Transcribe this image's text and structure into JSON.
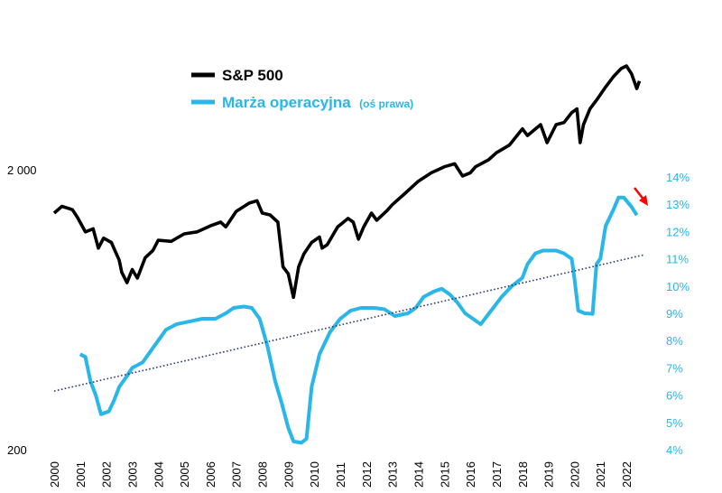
{
  "chart_data": {
    "type": "line",
    "title": "",
    "xlabel": "",
    "ylabel_left": "",
    "ylabel_right": "",
    "legend_position": "top-center",
    "grid": false,
    "colors": {
      "sp500": "#000000",
      "margin": "#29b6e8",
      "trend": "#2a3a6e",
      "arrow": "#ff0000"
    },
    "x_ticks": [
      "2000",
      "2001",
      "2002",
      "2003",
      "2004",
      "2005",
      "2006",
      "2007",
      "2008",
      "2009",
      "2010",
      "2011",
      "2012",
      "2013",
      "2014",
      "2015",
      "2016",
      "2017",
      "2018",
      "2019",
      "2020",
      "2021",
      "2022"
    ],
    "y_left": {
      "scale": "log",
      "range": [
        200,
        4900
      ],
      "tick_labels": [
        "200",
        "2 000"
      ],
      "tick_values": [
        200,
        2000
      ]
    },
    "y_right": {
      "scale": "linear",
      "range": [
        4,
        14
      ],
      "tick_labels": [
        "4%",
        "5%",
        "6%",
        "7%",
        "8%",
        "9%",
        "10%",
        "11%",
        "12%",
        "13%",
        "14%"
      ],
      "tick_values": [
        4,
        5,
        6,
        7,
        8,
        9,
        10,
        11,
        12,
        13,
        14
      ]
    },
    "series": [
      {
        "name": "S&P 500",
        "axis": "left",
        "points": [
          [
            2000.0,
            1400
          ],
          [
            2000.3,
            1480
          ],
          [
            2000.7,
            1440
          ],
          [
            2000.9,
            1350
          ],
          [
            2001.2,
            1200
          ],
          [
            2001.5,
            1230
          ],
          [
            2001.7,
            1050
          ],
          [
            2001.9,
            1140
          ],
          [
            2002.2,
            1100
          ],
          [
            2002.5,
            950
          ],
          [
            2002.6,
            860
          ],
          [
            2002.8,
            790
          ],
          [
            2003.0,
            880
          ],
          [
            2003.2,
            820
          ],
          [
            2003.5,
            970
          ],
          [
            2003.8,
            1030
          ],
          [
            2004.0,
            1120
          ],
          [
            2004.5,
            1110
          ],
          [
            2005.0,
            1180
          ],
          [
            2005.5,
            1200
          ],
          [
            2006.0,
            1260
          ],
          [
            2006.4,
            1300
          ],
          [
            2006.6,
            1250
          ],
          [
            2007.0,
            1420
          ],
          [
            2007.5,
            1520
          ],
          [
            2007.8,
            1550
          ],
          [
            2008.0,
            1400
          ],
          [
            2008.3,
            1380
          ],
          [
            2008.6,
            1300
          ],
          [
            2008.8,
            900
          ],
          [
            2009.0,
            850
          ],
          [
            2009.2,
            700
          ],
          [
            2009.4,
            900
          ],
          [
            2009.6,
            1000
          ],
          [
            2009.9,
            1100
          ],
          [
            2010.2,
            1150
          ],
          [
            2010.3,
            1050
          ],
          [
            2010.5,
            1080
          ],
          [
            2010.9,
            1250
          ],
          [
            2011.3,
            1340
          ],
          [
            2011.5,
            1300
          ],
          [
            2011.7,
            1130
          ],
          [
            2011.9,
            1250
          ],
          [
            2012.2,
            1400
          ],
          [
            2012.4,
            1320
          ],
          [
            2012.8,
            1430
          ],
          [
            2013.0,
            1500
          ],
          [
            2013.5,
            1650
          ],
          [
            2014.0,
            1820
          ],
          [
            2014.5,
            1950
          ],
          [
            2015.0,
            2050
          ],
          [
            2015.4,
            2100
          ],
          [
            2015.7,
            1900
          ],
          [
            2016.0,
            1950
          ],
          [
            2016.2,
            2050
          ],
          [
            2016.7,
            2170
          ],
          [
            2017.0,
            2300
          ],
          [
            2017.5,
            2450
          ],
          [
            2018.0,
            2800
          ],
          [
            2018.2,
            2650
          ],
          [
            2018.7,
            2900
          ],
          [
            2018.95,
            2500
          ],
          [
            2019.3,
            2900
          ],
          [
            2019.6,
            2950
          ],
          [
            2019.9,
            3200
          ],
          [
            2020.1,
            3300
          ],
          [
            2020.22,
            2500
          ],
          [
            2020.35,
            2900
          ],
          [
            2020.6,
            3300
          ],
          [
            2020.9,
            3600
          ],
          [
            2021.2,
            3950
          ],
          [
            2021.5,
            4300
          ],
          [
            2021.8,
            4600
          ],
          [
            2022.0,
            4700
          ],
          [
            2022.2,
            4400
          ],
          [
            2022.4,
            3900
          ],
          [
            2022.5,
            4150
          ]
        ]
      },
      {
        "name": "Marża operacyjna",
        "name_note": "(oś prawa)",
        "axis": "right",
        "points": [
          [
            2001.0,
            7.5
          ],
          [
            2001.2,
            7.4
          ],
          [
            2001.4,
            6.5
          ],
          [
            2001.6,
            6.0
          ],
          [
            2001.8,
            5.3
          ],
          [
            2002.1,
            5.4
          ],
          [
            2002.3,
            5.8
          ],
          [
            2002.5,
            6.3
          ],
          [
            2002.8,
            6.7
          ],
          [
            2003.0,
            7.0
          ],
          [
            2003.4,
            7.2
          ],
          [
            2003.7,
            7.6
          ],
          [
            2004.0,
            8.0
          ],
          [
            2004.3,
            8.4
          ],
          [
            2004.7,
            8.6
          ],
          [
            2005.2,
            8.7
          ],
          [
            2005.7,
            8.8
          ],
          [
            2006.2,
            8.8
          ],
          [
            2006.6,
            9.0
          ],
          [
            2006.9,
            9.2
          ],
          [
            2007.3,
            9.25
          ],
          [
            2007.6,
            9.2
          ],
          [
            2007.9,
            8.8
          ],
          [
            2008.2,
            7.8
          ],
          [
            2008.5,
            6.5
          ],
          [
            2008.75,
            5.7
          ],
          [
            2009.0,
            4.8
          ],
          [
            2009.2,
            4.3
          ],
          [
            2009.5,
            4.25
          ],
          [
            2009.7,
            4.4
          ],
          [
            2009.9,
            6.3
          ],
          [
            2010.2,
            7.5
          ],
          [
            2010.6,
            8.3
          ],
          [
            2011.0,
            8.8
          ],
          [
            2011.4,
            9.1
          ],
          [
            2011.8,
            9.2
          ],
          [
            2012.3,
            9.2
          ],
          [
            2012.7,
            9.15
          ],
          [
            2013.1,
            8.9
          ],
          [
            2013.6,
            9.0
          ],
          [
            2013.9,
            9.2
          ],
          [
            2014.2,
            9.6
          ],
          [
            2014.6,
            9.8
          ],
          [
            2014.9,
            9.9
          ],
          [
            2015.2,
            9.7
          ],
          [
            2015.5,
            9.4
          ],
          [
            2015.8,
            9.0
          ],
          [
            2016.1,
            8.8
          ],
          [
            2016.4,
            8.6
          ],
          [
            2016.8,
            9.1
          ],
          [
            2017.2,
            9.6
          ],
          [
            2017.6,
            10.0
          ],
          [
            2018.0,
            10.3
          ],
          [
            2018.2,
            10.8
          ],
          [
            2018.5,
            11.2
          ],
          [
            2018.8,
            11.3
          ],
          [
            2019.3,
            11.3
          ],
          [
            2019.6,
            11.2
          ],
          [
            2019.9,
            11.0
          ],
          [
            2020.0,
            10.3
          ],
          [
            2020.15,
            9.1
          ],
          [
            2020.4,
            9.0
          ],
          [
            2020.7,
            8.98
          ],
          [
            2020.85,
            10.8
          ],
          [
            2021.0,
            11.0
          ],
          [
            2021.2,
            12.2
          ],
          [
            2021.5,
            12.8
          ],
          [
            2021.7,
            13.25
          ],
          [
            2021.9,
            13.25
          ],
          [
            2022.2,
            12.9
          ],
          [
            2022.4,
            12.6
          ]
        ]
      },
      {
        "name": "",
        "role": "trend",
        "axis": "right",
        "points": [
          [
            2000.0,
            6.15
          ],
          [
            2022.7,
            11.15
          ]
        ]
      }
    ]
  }
}
